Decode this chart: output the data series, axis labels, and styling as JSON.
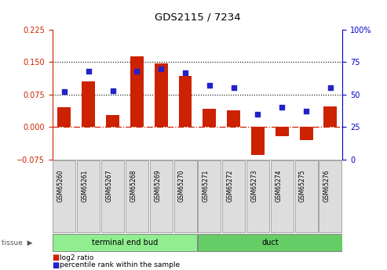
{
  "title": "GDS2115 / 7234",
  "samples": [
    "GSM65260",
    "GSM65261",
    "GSM65267",
    "GSM65268",
    "GSM65269",
    "GSM65270",
    "GSM65271",
    "GSM65272",
    "GSM65273",
    "GSM65274",
    "GSM65275",
    "GSM65276"
  ],
  "log2_ratio": [
    0.045,
    0.105,
    0.028,
    0.163,
    0.147,
    0.118,
    0.042,
    0.038,
    -0.065,
    -0.022,
    -0.03,
    0.048
  ],
  "percentile_rank": [
    52,
    68,
    53,
    68,
    70,
    67,
    57,
    55,
    35,
    40,
    37,
    55
  ],
  "groups": [
    {
      "label": "terminal end bud",
      "start": 0,
      "end": 6,
      "color": "#90EE90"
    },
    {
      "label": "duct",
      "start": 6,
      "end": 12,
      "color": "#66CC66"
    }
  ],
  "ylim_left": [
    -0.075,
    0.225
  ],
  "ylim_right": [
    0,
    100
  ],
  "yticks_left": [
    -0.075,
    0,
    0.075,
    0.15,
    0.225
  ],
  "yticks_right": [
    0,
    25,
    50,
    75,
    100
  ],
  "hlines": [
    0.075,
    0.15
  ],
  "bar_color": "#CC2200",
  "dot_color": "#2222CC",
  "zero_line_color": "#CC2200",
  "bar_width": 0.55,
  "tick_label_color_left": "#CC2200",
  "tick_label_color_right": "#0000CC",
  "tissue_label": "tissue"
}
